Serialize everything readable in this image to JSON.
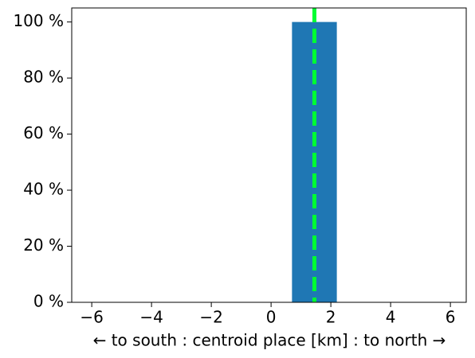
{
  "chart_data": {
    "type": "histogram",
    "xlabel": "← to south : centroid place [km] : to north →",
    "bins": [
      0.7,
      2.2
    ],
    "values": [
      100
    ],
    "color": "#1f77b4",
    "reference_line": {
      "x": 1.45,
      "color": "#00ff33",
      "dashed": true
    },
    "xlim": [
      -6.67,
      6.53
    ],
    "xticks": [
      {
        "value": -6,
        "label": "−6"
      },
      {
        "value": -4,
        "label": "−4"
      },
      {
        "value": -2,
        "label": "−2"
      },
      0,
      2,
      4,
      6
    ],
    "ylim": [
      0,
      105
    ],
    "yticks": [
      {
        "value": 0,
        "label": "0 %"
      },
      {
        "value": 20,
        "label": "20 %"
      },
      {
        "value": 40,
        "label": "40 %"
      },
      {
        "value": 60,
        "label": "60 %"
      },
      {
        "value": 80,
        "label": "80 %"
      },
      {
        "value": 100,
        "label": "100 %"
      }
    ],
    "grid": false
  }
}
